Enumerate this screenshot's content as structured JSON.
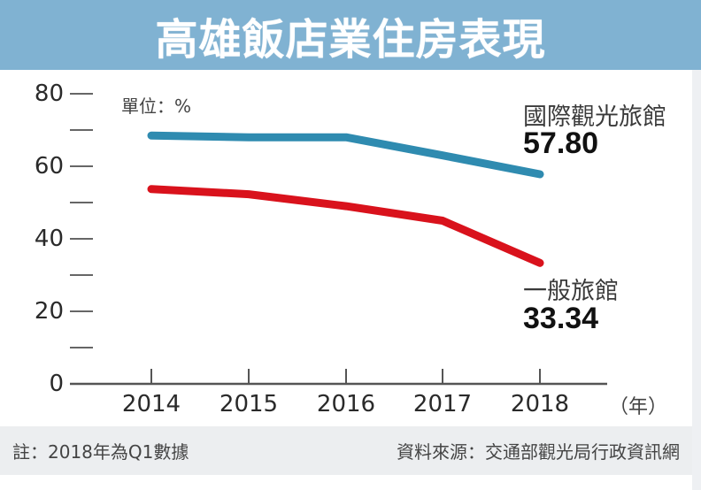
{
  "title": "高雄飯店業住房表現",
  "unit_label": "單位：%",
  "x_unit": "（年）",
  "footer": {
    "note": "註：2018年為Q1數據",
    "source": "資料來源：交通部觀光局行政資訊網"
  },
  "y_ticks": [
    "80",
    "60",
    "40",
    "20",
    "0"
  ],
  "x_ticks": [
    "2014",
    "2015",
    "2016",
    "2017",
    "2018"
  ],
  "series_labels": {
    "international": {
      "name": "國際觀光旅館",
      "value": "57.80"
    },
    "general": {
      "name": "一般旅館",
      "value": "33.34"
    }
  },
  "colors": {
    "title_bar": "#80b2d2",
    "international_line": "#2f8bb0",
    "general_line": "#d9121c",
    "footer_bg": "#eceef0"
  },
  "chart_data": {
    "type": "line",
    "title": "高雄飯店業住房表現",
    "xlabel": "（年）",
    "ylabel": "單位：%",
    "categories": [
      "2014",
      "2015",
      "2016",
      "2017",
      "2018"
    ],
    "series": [
      {
        "name": "國際觀光旅館",
        "color": "#2f8bb0",
        "values": [
          68.5,
          68.0,
          68.0,
          63.0,
          57.8
        ]
      },
      {
        "name": "一般旅館",
        "color": "#d9121c",
        "values": [
          53.7,
          52.3,
          49.0,
          45.0,
          33.34
        ]
      }
    ],
    "ylim": [
      0,
      80
    ],
    "yticks": [
      0,
      10,
      20,
      30,
      40,
      50,
      60,
      70,
      80
    ],
    "ytick_labels": [
      "0",
      "",
      "20",
      "",
      "40",
      "",
      "60",
      "",
      "80"
    ],
    "grid": false,
    "legend": "direct labels at right end of lines",
    "annotations": [
      "57.80",
      "33.34",
      "註：2018年為Q1數據",
      "資料來源：交通部觀光局行政資訊網"
    ]
  }
}
